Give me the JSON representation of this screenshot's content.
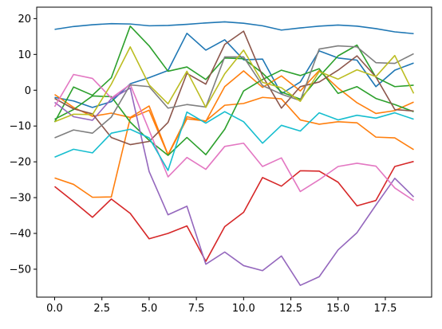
{
  "chart_data": {
    "type": "line",
    "title": "",
    "xlabel": "",
    "ylabel": "",
    "xlim": [
      -0.95,
      19.95
    ],
    "ylim": [
      -57.8,
      23.2
    ],
    "grid": false,
    "x": [
      0,
      1,
      2,
      3,
      4,
      5,
      6,
      7,
      8,
      9,
      10,
      11,
      12,
      13,
      14,
      15,
      16,
      17,
      18,
      19
    ],
    "xticks": [
      0.0,
      2.5,
      5.0,
      7.5,
      10.0,
      12.5,
      15.0,
      17.5
    ],
    "xtick_labels": [
      "0.0",
      "2.5",
      "5.0",
      "7.5",
      "10.0",
      "12.5",
      "15.0",
      "17.5"
    ],
    "yticks": [
      20,
      10,
      0,
      -10,
      -20,
      -30,
      -40,
      -50
    ],
    "ytick_labels": [
      "20",
      "10",
      "0",
      "−10",
      "−20",
      "−30",
      "−40",
      "−50"
    ],
    "series": [
      {
        "color": "#1f77b4",
        "values": [
          17.0,
          17.8,
          18.3,
          18.6,
          18.5,
          18.0,
          18.1,
          18.4,
          18.8,
          19.1,
          18.7,
          18.0,
          16.8,
          17.4,
          17.9,
          18.2,
          17.9,
          17.2,
          16.3,
          15.8
        ]
      },
      {
        "color": "#1f77b4",
        "values": [
          -2.0,
          -3.0,
          -4.8,
          -3.2,
          1.8,
          3.5,
          5.5,
          15.9,
          11.2,
          14.1,
          8.5,
          8.7,
          -1.0,
          2.3,
          11.0,
          9.0,
          8.4,
          1.0,
          5.6,
          7.6
        ]
      },
      {
        "color": "#ff7f0e",
        "values": [
          -1.2,
          -4.8,
          -7.3,
          -6.4,
          -7.6,
          -4.4,
          -18.0,
          -7.4,
          -8.7,
          1.0,
          5.4,
          0.8,
          4.0,
          -0.2,
          5.5,
          0.6,
          -3.5,
          -6.5,
          -5.7,
          -3.3
        ]
      },
      {
        "color": "#ff7f0e",
        "values": [
          -24.5,
          -26.3,
          -29.9,
          -29.8,
          -7.8,
          -5.6,
          -18.1,
          -8.0,
          -8.6,
          -4.2,
          -3.7,
          -2.0,
          -2.4,
          -8.3,
          -9.5,
          -8.8,
          -9.1,
          -13.1,
          -13.3,
          -16.6
        ]
      },
      {
        "color": "#2ca02c",
        "values": [
          -8.1,
          -5.4,
          -1.6,
          -1.8,
          -8.9,
          -14.0,
          -18.2,
          -13.2,
          -18.0,
          -10.9,
          -0.2,
          3.0,
          5.6,
          4.1,
          6.0,
          -0.9,
          1.0,
          -2.3,
          -4.0,
          -6.0
        ]
      },
      {
        "color": "#2ca02c",
        "values": [
          -8.9,
          0.9,
          -1.4,
          3.5,
          17.9,
          12.4,
          5.3,
          6.5,
          3.0,
          9.0,
          8.8,
          4.8,
          -0.5,
          -2.5,
          3.8,
          9.6,
          12.6,
          3.6,
          1.0,
          1.4
        ]
      },
      {
        "color": "#d62728",
        "values": [
          -26.9,
          -31.1,
          -35.5,
          -30.4,
          -34.4,
          -41.5,
          -40.0,
          -37.9,
          -47.8,
          -38.1,
          -34.1,
          -24.4,
          -26.8,
          -22.5,
          -22.6,
          -25.7,
          -32.3,
          -30.8,
          -21.3,
          -19.9
        ]
      },
      {
        "color": "#9467bd",
        "values": [
          -3.4,
          -7.4,
          -8.4,
          -2.4,
          0.6,
          -22.7,
          -34.8,
          -32.4,
          -48.6,
          -45.2,
          -49.0,
          -50.4,
          -46.3,
          -54.5,
          -52.1,
          -44.6,
          -39.8,
          -32.1,
          -24.6,
          -29.8
        ]
      },
      {
        "color": "#8c564b",
        "values": [
          -2.3,
          -5.2,
          -6.6,
          -13.2,
          -15.2,
          -14.3,
          -9.0,
          4.7,
          1.7,
          12.8,
          16.5,
          4.0,
          -5.0,
          1.0,
          2.3,
          5.6,
          9.6,
          3.7,
          -5.4,
          -5.8
        ]
      },
      {
        "color": "#e377c2",
        "values": [
          -4.6,
          4.4,
          3.3,
          -2.2,
          1.6,
          -11.2,
          -24.2,
          -18.8,
          -22.1,
          -15.7,
          -14.8,
          -21.3,
          -18.9,
          -28.3,
          -25.0,
          -21.3,
          -20.4,
          -21.2,
          -27.3,
          -30.8
        ]
      },
      {
        "color": "#7f7f7f",
        "values": [
          -13.3,
          -11.1,
          -12.0,
          -7.5,
          1.5,
          1.0,
          -5.0,
          -4.0,
          -4.7,
          9.3,
          9.3,
          1.3,
          -1.1,
          -2.9,
          11.5,
          12.4,
          12.1,
          7.7,
          7.5,
          10.2
        ]
      },
      {
        "color": "#bcbd22",
        "values": [
          -8.8,
          -6.7,
          -6.8,
          1.7,
          12.1,
          1.5,
          -3.8,
          5.3,
          -4.8,
          4.6,
          11.2,
          2.2,
          0.7,
          -3.1,
          5.2,
          3.1,
          5.7,
          3.8,
          9.7,
          -0.9
        ]
      },
      {
        "color": "#17becf",
        "values": [
          -18.7,
          -16.5,
          -17.5,
          -12.0,
          -10.9,
          -13.3,
          -22.4,
          -6.1,
          -9.2,
          -6.0,
          -8.8,
          -14.8,
          -9.8,
          -11.4,
          -6.3,
          -8.3,
          -7.0,
          -7.8,
          -6.3,
          -8.1
        ]
      }
    ]
  }
}
